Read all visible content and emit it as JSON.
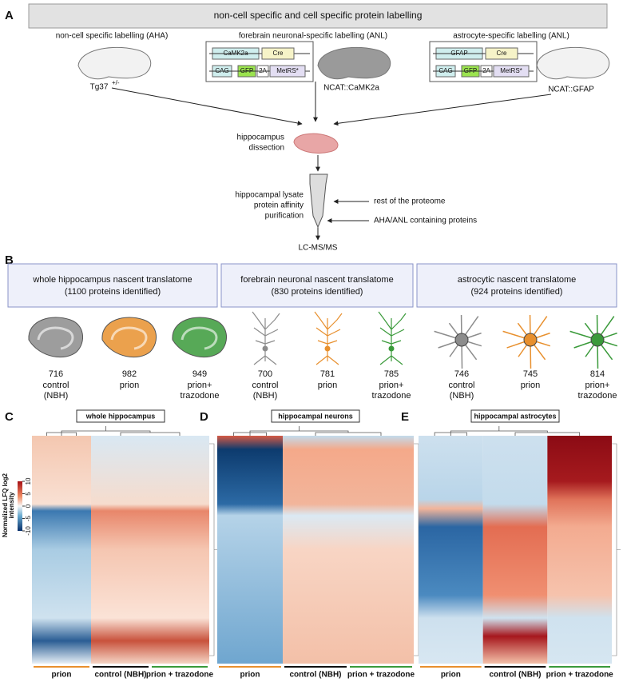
{
  "panels": {
    "a": {
      "letter": "A",
      "title": "non-cell specific and cell specific protein labelling",
      "labels": [
        "non-cell specific labelling (AHA)",
        "forebrain neuronal-specific labelling (ANL)",
        "astrocyte-specific labelling (ANL)"
      ],
      "strain1": "Tg37",
      "strain1_sup": "+/-",
      "strain2": "NCAT::CaMK2a",
      "strain3": "NCAT::GFAP",
      "construct1": [
        "CaMK2a",
        "Cre",
        "CAG",
        "GFP",
        "2A",
        "MetRS*"
      ],
      "construct2": [
        "GFAP",
        "Cre",
        "CAG",
        "GFP",
        "2A",
        "MetRS*"
      ],
      "dissection": [
        "hippocampus",
        "dissection"
      ],
      "lysate": [
        "hippocampal lysate",
        "protein affinity",
        "purification"
      ],
      "rest": "rest of the proteome",
      "containing": "AHA/ANL containing proteins",
      "ms": "LC-MS/MS"
    },
    "b": {
      "letter": "B",
      "boxes": [
        {
          "title": "whole hippocampus nascent translatome",
          "subtitle": "(1100 proteins identified)"
        },
        {
          "title": "forebrain neuronal nascent translatome",
          "subtitle": "(830 proteins identified)"
        },
        {
          "title": "astrocytic nascent translatome",
          "subtitle": "(924 proteins identified)"
        }
      ],
      "groups": [
        {
          "count": "716",
          "label": [
            "control",
            "(NBH)"
          ],
          "color": "#8c8c8c"
        },
        {
          "count": "982",
          "label": [
            "prion"
          ],
          "color": "#e8902e"
        },
        {
          "count": "949",
          "label": [
            "prion+",
            "trazodone"
          ],
          "color": "#3a9a3a"
        },
        {
          "count": "700",
          "label": [
            "control",
            "(NBH)"
          ],
          "color": "#8c8c8c"
        },
        {
          "count": "781",
          "label": [
            "prion"
          ],
          "color": "#e8902e"
        },
        {
          "count": "785",
          "label": [
            "prion+",
            "trazodone"
          ],
          "color": "#3a9a3a"
        },
        {
          "count": "746",
          "label": [
            "control",
            "(NBH)"
          ],
          "color": "#8c8c8c"
        },
        {
          "count": "745",
          "label": [
            "prion"
          ],
          "color": "#e8902e"
        },
        {
          "count": "814",
          "label": [
            "prion+",
            "trazodone"
          ],
          "color": "#3a9a3a"
        }
      ]
    },
    "heatmaps": [
      {
        "letter": "C",
        "title": "whole hippocampus",
        "groups": [
          "prion",
          "control (NBH)",
          "prion + trazodone"
        ]
      },
      {
        "letter": "D",
        "title": "hippocampal neurons",
        "groups": [
          "prion",
          "control (NBH)",
          "prion + trazodone"
        ]
      },
      {
        "letter": "E",
        "title": "hippocampal astrocytes",
        "groups": [
          "prion",
          "control (NBH)",
          "prion + trazodone"
        ]
      }
    ],
    "colorbar": {
      "label": [
        "Normalized LFQ log2",
        "intensity"
      ],
      "lim": [
        -10,
        10
      ],
      "ticks": [
        10,
        5,
        0,
        -5,
        -10
      ]
    }
  }
}
